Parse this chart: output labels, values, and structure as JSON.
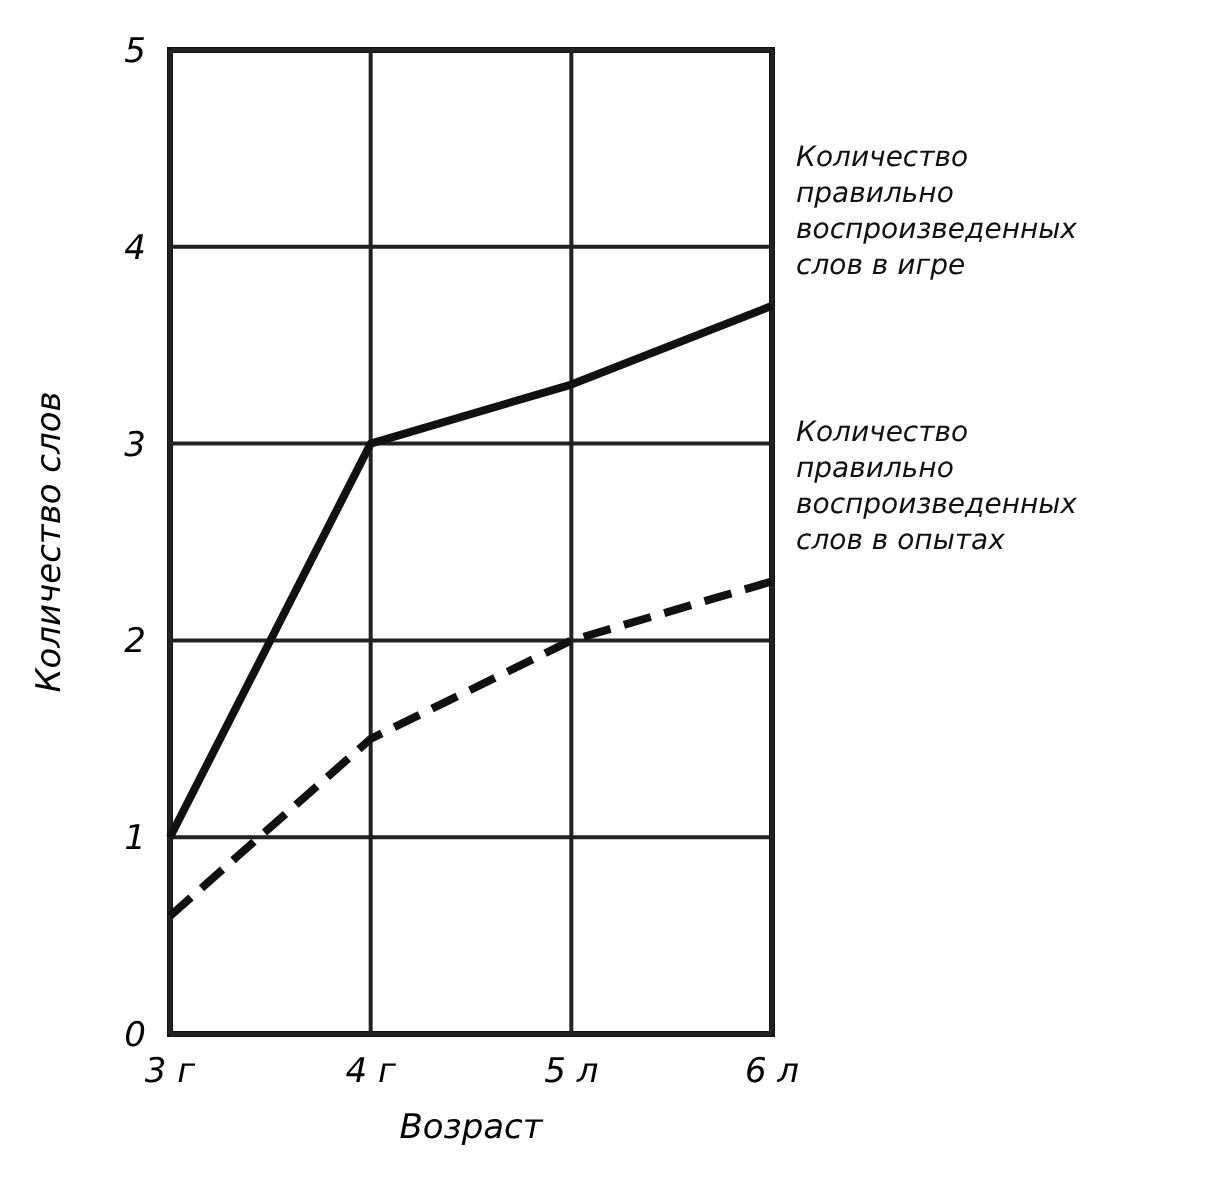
{
  "chart_data": {
    "type": "line",
    "xlabel": "Возраст",
    "ylabel": "Количество слов",
    "categories": [
      "3 г",
      "4 г",
      "5 л",
      "6 л"
    ],
    "ylim": [
      0,
      5
    ],
    "yticks": [
      0,
      1,
      2,
      3,
      4,
      5
    ],
    "grid": true,
    "marker": "none",
    "series": [
      {
        "name": "Количество правильно воспроизведенных слов в игре",
        "color": "#111111",
        "line_style": "solid",
        "values": [
          1.0,
          3.0,
          3.3,
          3.7
        ]
      },
      {
        "name": "Количество правильно воспроизведенных слов в опытах",
        "color": "#111111",
        "line_style": "dashed",
        "values": [
          0.6,
          1.5,
          2.0,
          2.3
        ]
      }
    ]
  }
}
